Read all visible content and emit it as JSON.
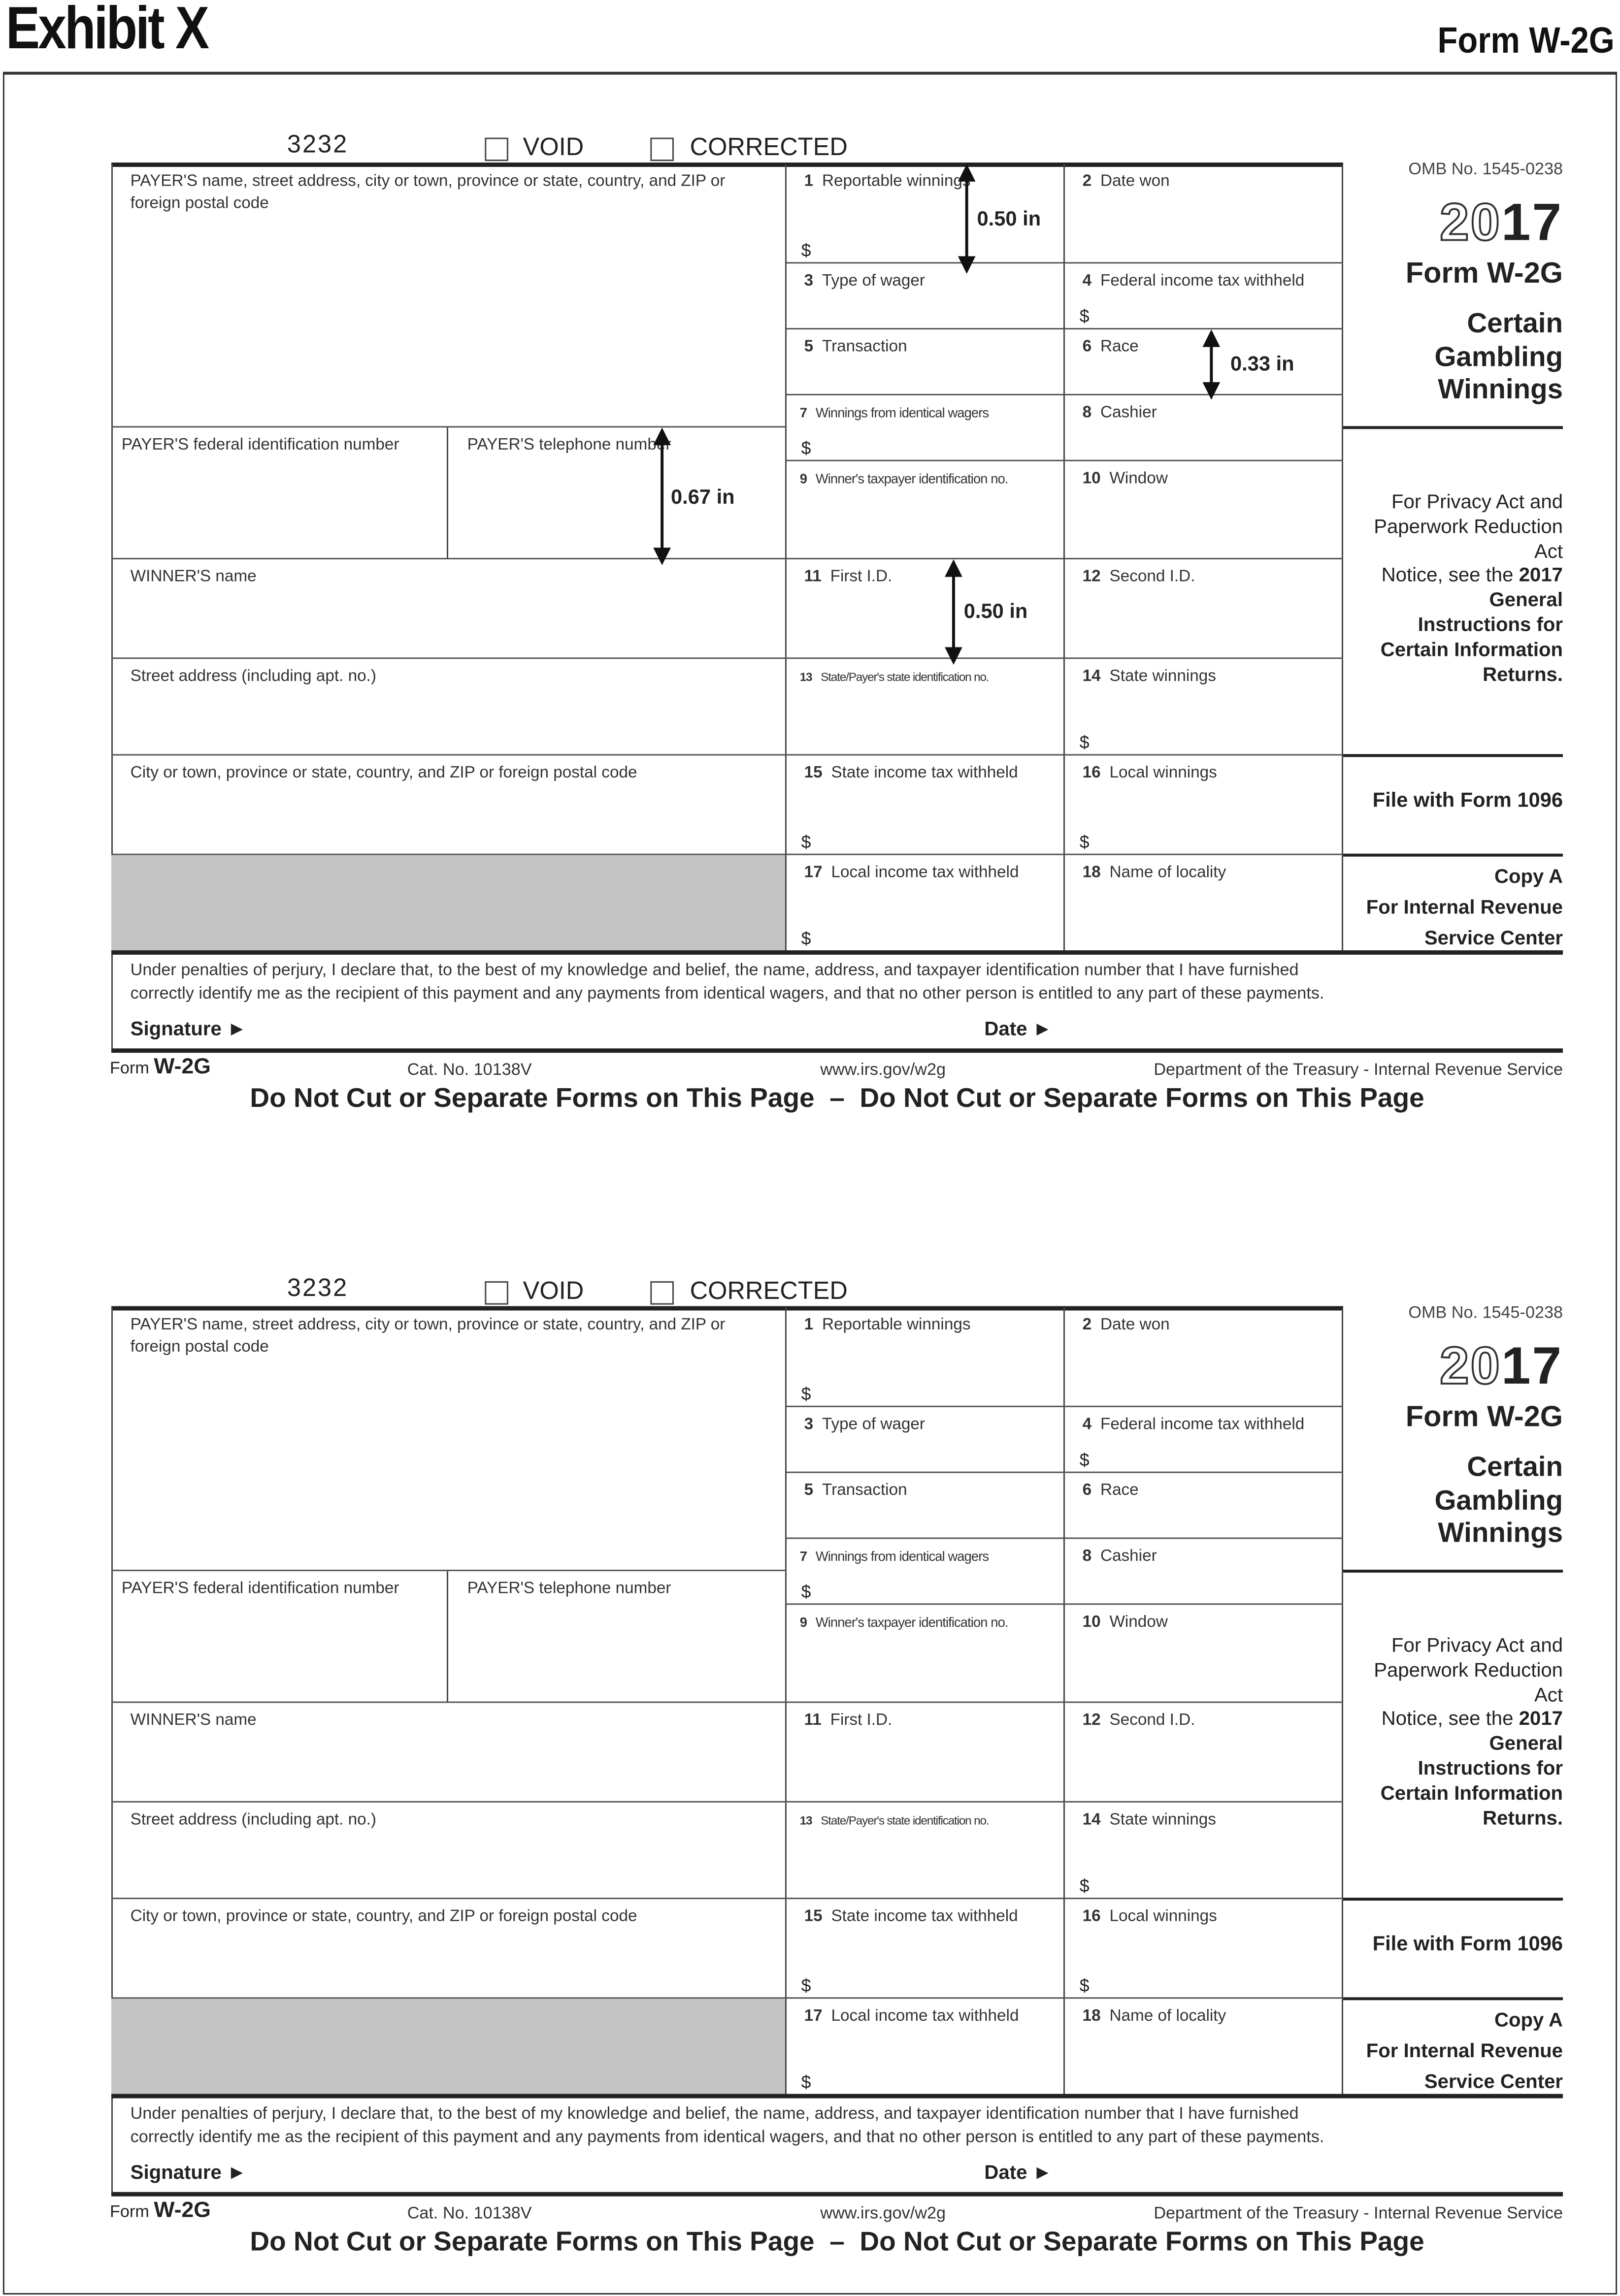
{
  "header": {
    "exhibit": "Exhibit X",
    "form_title": "Form W-2G"
  },
  "form": {
    "control_number": "3232",
    "void_label": "VOID",
    "corrected_label": "CORRECTED",
    "left": {
      "payer": "PAYER'S name, street address, city or town, province or state, country, and ZIP or foreign postal code",
      "fedid": "PAYER'S federal identification number",
      "phone": "PAYER'S telephone number",
      "winner": "WINNER'S name",
      "street": "Street address (including apt. no.)",
      "city": "City or town, province or state, country, and ZIP or foreign postal  code"
    },
    "boxes": {
      "b1": {
        "num": "1",
        "label": "Reportable winnings",
        "dollar": "$"
      },
      "b2": {
        "num": "2",
        "label": "Date won"
      },
      "b3": {
        "num": "3",
        "label": "Type of wager"
      },
      "b4": {
        "num": "4",
        "label": "Federal income tax withheld",
        "dollar": "$"
      },
      "b5": {
        "num": "5",
        "label": "Transaction"
      },
      "b6": {
        "num": "6",
        "label": "Race"
      },
      "b7": {
        "num": "7",
        "label": "Winnings from identical wagers",
        "dollar": "$"
      },
      "b8": {
        "num": "8",
        "label": "Cashier"
      },
      "b9": {
        "num": "9",
        "label": "Winner's taxpayer identification no."
      },
      "b10": {
        "num": "10",
        "label": "Window"
      },
      "b11": {
        "num": "11",
        "label": "First I.D."
      },
      "b12": {
        "num": "12",
        "label": "Second I.D."
      },
      "b13": {
        "num": "13",
        "label": "State/Payer's state identification no."
      },
      "b14": {
        "num": "14",
        "label": "State winnings",
        "dollar": "$"
      },
      "b15": {
        "num": "15",
        "label": "State income tax withheld",
        "dollar": "$"
      },
      "b16": {
        "num": "16",
        "label": "Local winnings",
        "dollar": "$"
      },
      "b17": {
        "num": "17",
        "label": "Local income tax withheld",
        "dollar": "$"
      },
      "b18": {
        "num": "18",
        "label": "Name of locality"
      }
    },
    "side": {
      "omb": "OMB No. 1545-0238",
      "year_outline": "20",
      "year_bold": "17",
      "form_name": "Form W-2G",
      "title_lines": [
        "Certain",
        "Gambling",
        "Winnings"
      ],
      "privacy_lines": [
        "For Privacy Act and",
        "Paperwork Reduction",
        "Act",
        "Notice, see the",
        "2017",
        "General",
        "Instructions for",
        "Certain Information",
        "Returns."
      ],
      "file_with": "File with Form 1096",
      "copy": "Copy A",
      "copy_for": "For Internal Revenue",
      "copy_center": "Service Center"
    },
    "perjury_line1": "Under penalties of perjury, I declare that, to the best of my knowledge and belief, the name, address, and taxpayer identification number that I have furnished",
    "perjury_line2": "correctly identify me as the recipient of this payment and any payments from identical wagers, and that no other person is entitled to any part of these payments.",
    "signature_label": "Signature ►",
    "date_label": "Date ►",
    "footer": {
      "form_prefix": "Form",
      "form_name": "W-2G",
      "cat_no": "Cat. No. 10138V",
      "url": "www.irs.gov/w2g",
      "dept": "Department of the Treasury - Internal Revenue Service",
      "warning": "Do Not Cut or Separate Forms on This Page  –  Do Not Cut or Separate Forms on This Page"
    }
  },
  "annotations": [
    {
      "label": "0.50 in"
    },
    {
      "label": "0.33 in"
    },
    {
      "label": "0.67 in"
    },
    {
      "label": "0.50 in"
    }
  ]
}
